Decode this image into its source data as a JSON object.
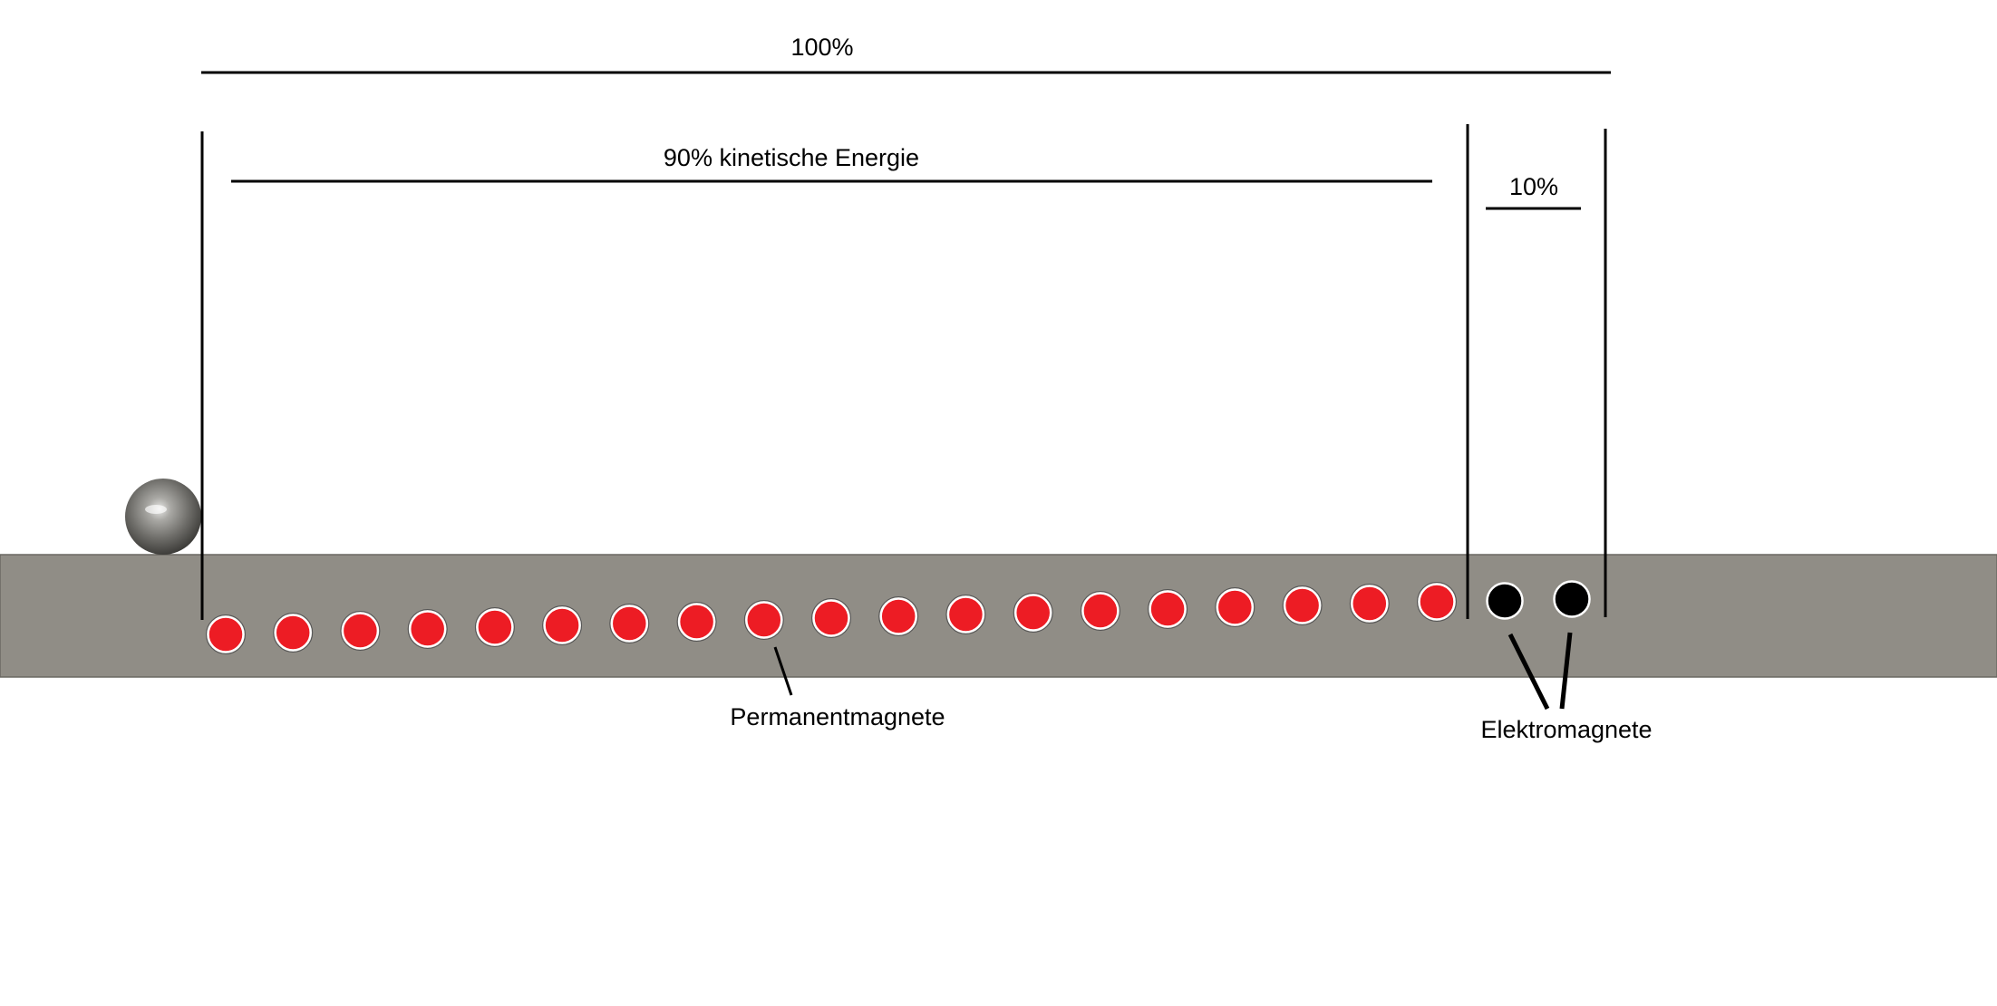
{
  "labels": {
    "total": "100%",
    "kinetic": "90% kinetische Energie",
    "electric_share": "10%",
    "permanent_magnets": "Permanentmagnete",
    "electromagnets": "Elektromagnete"
  },
  "magnets": {
    "permanent_count": 19,
    "electro_count": 2
  },
  "colors": {
    "background": "#ffffff",
    "track": "#908d86",
    "track_border": "#6a6862",
    "permanent_magnet": "#ed1c24",
    "electromagnet": "#000000",
    "line": "#000000"
  },
  "icons": {
    "ball": "steel-ball-icon"
  }
}
